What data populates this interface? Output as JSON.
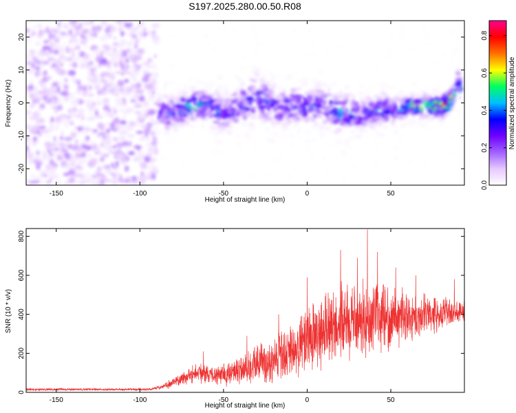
{
  "figure": {
    "title": "S197.2025.280.00.50.R08"
  },
  "chart_data": [
    {
      "type": "heatmap",
      "xlabel": "Height of straight line (km)",
      "ylabel": "Frequency (Hz)",
      "xlim": [
        -168,
        94
      ],
      "ylim": [
        -25,
        25
      ],
      "xticks": [
        -150,
        -100,
        -50,
        0,
        50
      ],
      "yticks": [
        -20,
        -10,
        0,
        10,
        20
      ],
      "colorbar": {
        "label": "Normalized spectral amplitude",
        "range": [
          0,
          0.88
        ],
        "ticks": [
          0.0,
          0.2,
          0.4,
          0.6,
          0.8
        ],
        "colors": [
          "#ffffff",
          "#e6c8ff",
          "#a060ff",
          "#7000ff",
          "#0000ff",
          "#00c0ff",
          "#00ff60",
          "#ffff00",
          "#ff7000",
          "#ff0000",
          "#ff0090"
        ]
      },
      "noise_region": {
        "x": [
          -168,
          -90
        ],
        "y": [
          -25,
          25
        ]
      },
      "ridge": {
        "x": [
          -90,
          -85,
          -80,
          -75,
          -70,
          -65,
          -60,
          -55,
          -50,
          -45,
          -40,
          -35,
          -30,
          -25,
          -20,
          -15,
          -10,
          -5,
          0,
          5,
          10,
          15,
          20,
          25,
          30,
          35,
          40,
          45,
          50,
          55,
          60,
          65,
          70,
          75,
          80,
          85,
          88,
          90,
          92
        ],
        "freq": [
          -4,
          -3,
          -3,
          -2,
          -1,
          -1,
          -1,
          -2,
          -3,
          -2,
          -1,
          0,
          2,
          1,
          -1,
          -2,
          -1,
          -1,
          -1,
          -1,
          -1,
          -2,
          -3,
          -3,
          -4,
          -3,
          -3,
          -2,
          -2,
          -2,
          -1,
          -1,
          -1,
          -1,
          -1,
          0,
          3,
          8,
          3
        ],
        "amplitude": [
          0.25,
          0.3,
          0.35,
          0.4,
          0.45,
          0.45,
          0.4,
          0.35,
          0.3,
          0.3,
          0.3,
          0.3,
          0.35,
          0.35,
          0.3,
          0.3,
          0.3,
          0.3,
          0.35,
          0.35,
          0.3,
          0.4,
          0.4,
          0.35,
          0.3,
          0.3,
          0.35,
          0.4,
          0.35,
          0.35,
          0.45,
          0.5,
          0.6,
          0.6,
          0.7,
          0.75,
          0.4,
          0.35,
          0.5
        ],
        "spread": [
          5,
          5,
          4,
          4,
          4,
          4,
          4,
          5,
          5,
          5,
          5,
          6,
          6,
          6,
          5,
          5,
          5,
          5,
          5,
          5,
          5,
          5,
          5,
          5,
          5,
          4,
          4,
          4,
          4,
          3,
          3,
          3,
          3,
          3,
          3,
          3,
          3,
          3,
          3
        ]
      }
    },
    {
      "type": "line",
      "xlabel": "Height of straight line (km)",
      "ylabel": "SNR (10 * v/v)",
      "xlim": [
        -168,
        94
      ],
      "ylim": [
        0,
        840
      ],
      "xticks": [
        -150,
        -100,
        -50,
        0,
        50
      ],
      "yticks": [
        0,
        200,
        400,
        600,
        800
      ],
      "series": [
        {
          "name": "SNR",
          "color": "#ee3333",
          "envelope_x": [
            -168,
            -140,
            -110,
            -95,
            -88,
            -80,
            -75,
            -70,
            -65,
            -60,
            -55,
            -50,
            -45,
            -40,
            -35,
            -30,
            -25,
            -20,
            -15,
            -10,
            -5,
            0,
            5,
            10,
            15,
            20,
            25,
            30,
            35,
            40,
            45,
            50,
            55,
            60,
            65,
            70,
            75,
            80,
            85,
            90,
            94
          ],
          "envelope_mean": [
            15,
            15,
            15,
            15,
            25,
            50,
            70,
            90,
            100,
            95,
            90,
            90,
            100,
            120,
            130,
            150,
            160,
            170,
            180,
            200,
            230,
            260,
            290,
            310,
            330,
            350,
            365,
            375,
            380,
            385,
            385,
            385,
            390,
            390,
            390,
            400,
            400,
            405,
            410,
            415,
            420
          ],
          "envelope_spread": [
            6,
            6,
            6,
            6,
            10,
            25,
            35,
            45,
            50,
            45,
            45,
            55,
            65,
            80,
            90,
            100,
            110,
            120,
            130,
            140,
            160,
            170,
            180,
            185,
            190,
            190,
            190,
            185,
            180,
            170,
            160,
            150,
            140,
            130,
            110,
            100,
            90,
            80,
            70,
            60,
            55
          ],
          "peaks": [
            {
              "x": 36,
              "y": 835
            },
            {
              "x": 20,
              "y": 730
            },
            {
              "x": 42,
              "y": 720
            },
            {
              "x": 30,
              "y": 690
            },
            {
              "x": 0,
              "y": 590
            },
            {
              "x": 53,
              "y": 640
            },
            {
              "x": 65,
              "y": 600
            },
            {
              "x": -62,
              "y": 210
            },
            {
              "x": -36,
              "y": 290
            },
            {
              "x": -17,
              "y": 400
            },
            {
              "x": 88,
              "y": 580
            }
          ]
        }
      ]
    }
  ]
}
